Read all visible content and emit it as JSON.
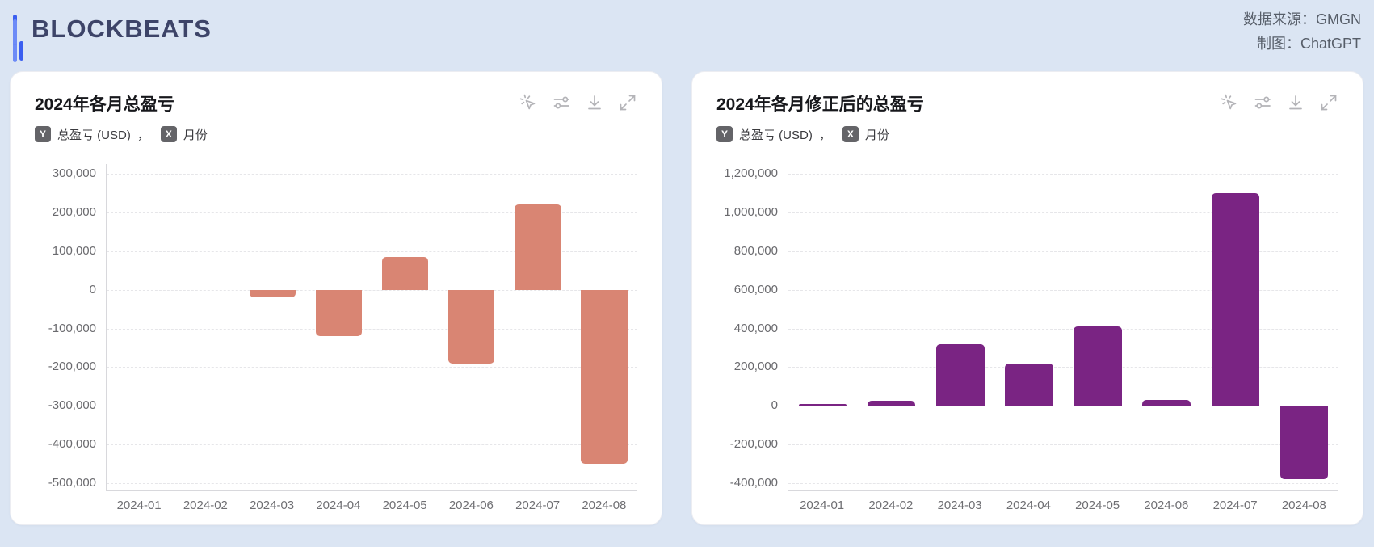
{
  "page_background": "#dbe5f3",
  "header": {
    "logo_text": "BLOCKBEATS",
    "source_label": "数据来源：",
    "source_value": "GMGN",
    "credit_label": "制图：",
    "credit_value": "ChatGPT"
  },
  "card_toolbar_icons": [
    "interact-cursor",
    "filter-sliders",
    "download",
    "expand"
  ],
  "badges": {
    "y": "Y",
    "x": "X",
    "separator": "，"
  },
  "brand_colors": {
    "logo_blue_dark": "#3a5ef0",
    "logo_blue_light": "#6d8bf7",
    "logo_text": "#3d4468"
  },
  "chart_data": [
    {
      "type": "bar",
      "title": "2024年各月总盈亏",
      "ylabel": "总盈亏 (USD)",
      "xlabel": "月份",
      "categories": [
        "2024-01",
        "2024-02",
        "2024-03",
        "2024-04",
        "2024-05",
        "2024-06",
        "2024-07",
        "2024-08"
      ],
      "values": [
        0,
        0,
        -20000,
        -120000,
        85000,
        -190000,
        220000,
        -450000
      ],
      "ylim": [
        -500000,
        300000
      ],
      "ytick_step": 100000,
      "bar_color": "#d98573",
      "grid": true,
      "legend": false
    },
    {
      "type": "bar",
      "title": "2024年各月修正后的总盈亏",
      "ylabel": "总盈亏 (USD)",
      "xlabel": "月份",
      "categories": [
        "2024-01",
        "2024-02",
        "2024-03",
        "2024-04",
        "2024-05",
        "2024-06",
        "2024-07",
        "2024-08"
      ],
      "values": [
        10000,
        25000,
        320000,
        220000,
        410000,
        30000,
        1100000,
        -380000
      ],
      "ylim": [
        -400000,
        1200000
      ],
      "ytick_step": 200000,
      "bar_color": "#7a2483",
      "grid": true,
      "legend": false
    }
  ]
}
